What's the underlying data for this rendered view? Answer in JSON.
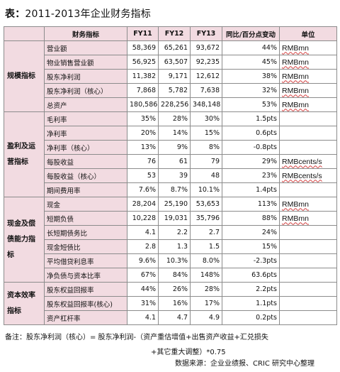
{
  "title": {
    "prefix": "表：",
    "text": "2011-2013年企业财务指标"
  },
  "headers": [
    "",
    "财务指标",
    "FY11",
    "FY12",
    "FY13",
    "同比/百分点变动",
    "单位"
  ],
  "groups": [
    {
      "name": "规模指标",
      "rows": [
        {
          "label": "营业额",
          "fy11": "58,369",
          "fy12": "65,261",
          "fy13": "93,672",
          "chg": "44%",
          "unit": "RMBmn"
        },
        {
          "label": "物业销售营业额",
          "fy11": "56,925",
          "fy12": "63,507",
          "fy13": "92,235",
          "chg": "45%",
          "unit": "RMBmn"
        },
        {
          "label": "股东净利润",
          "fy11": "11,382",
          "fy12": "9,171",
          "fy13": "12,612",
          "chg": "38%",
          "unit": "RMBmn"
        },
        {
          "label": "股东净利润（核心）",
          "fy11": "7,868",
          "fy12": "5,782",
          "fy13": "7,638",
          "chg": "32%",
          "unit": "RMBmn"
        },
        {
          "label": "总资产",
          "fy11": "180,586",
          "fy12": "228,256",
          "fy13": "348,148",
          "chg": "53%",
          "unit": "RMBmn"
        }
      ]
    },
    {
      "name": "盈利及运营指标",
      "rows": [
        {
          "label": "毛利率",
          "fy11": "35%",
          "fy12": "28%",
          "fy13": "30%",
          "chg": "1.5pts",
          "unit": ""
        },
        {
          "label": "净利率",
          "fy11": "20%",
          "fy12": "14%",
          "fy13": "15%",
          "chg": "0.6pts",
          "unit": ""
        },
        {
          "label": "净利率（核心）",
          "fy11": "13%",
          "fy12": "9%",
          "fy13": "8%",
          "chg": "-0.8pts",
          "unit": ""
        },
        {
          "label": "每股收益",
          "fy11": "76",
          "fy12": "61",
          "fy13": "79",
          "chg": "29%",
          "unit": "RMBcents/s"
        },
        {
          "label": "每股收益（核心）",
          "fy11": "53",
          "fy12": "39",
          "fy13": "48",
          "chg": "23%",
          "unit": "RMBcents/s"
        },
        {
          "label": "期间费用率",
          "fy11": "7.6%",
          "fy12": "8.7%",
          "fy13": "10.1%",
          "chg": "1.4pts",
          "unit": ""
        }
      ]
    },
    {
      "name": "现金及偿债能力指标",
      "rows": [
        {
          "label": "现金",
          "fy11": "28,204",
          "fy12": "25,190",
          "fy13": "53,653",
          "chg": "113%",
          "unit": "RMBmn"
        },
        {
          "label": "短期负债",
          "fy11": "10,228",
          "fy12": "19,031",
          "fy13": "35,796",
          "chg": "88%",
          "unit": "RMBmn"
        },
        {
          "label": "长短期债务比",
          "fy11": "4.1",
          "fy12": "2.2",
          "fy13": "2.7",
          "chg": "24%",
          "unit": ""
        },
        {
          "label": "现金短债比",
          "fy11": "2.8",
          "fy12": "1.3",
          "fy13": "1.5",
          "chg": "15%",
          "unit": ""
        },
        {
          "label": "平均借贷利息率",
          "fy11": "9.6%",
          "fy12": "10.3%",
          "fy13": "8.0%",
          "chg": "-2.3pts",
          "unit": ""
        },
        {
          "label": "净负债与资本比率",
          "fy11": "67%",
          "fy12": "84%",
          "fy13": "148%",
          "chg": "63.6pts",
          "unit": ""
        }
      ]
    },
    {
      "name": "资本效率指标",
      "rows": [
        {
          "label": "股东权益回报率",
          "fy11": "44%",
          "fy12": "26%",
          "fy13": "28%",
          "chg": "2.2pts",
          "unit": ""
        },
        {
          "label": "股东权益回报率(核心)",
          "fy11": "31%",
          "fy12": "16%",
          "fy13": "17%",
          "chg": "1.1pts",
          "unit": ""
        },
        {
          "label": "资产杠杆率",
          "fy11": "4.1",
          "fy12": "4.7",
          "fy13": "4.9",
          "chg": "0.2pts",
          "unit": ""
        }
      ]
    }
  ],
  "notes": {
    "line1": "备注：股东净利润（核心）= 股东净利润-（资产重估增值+出售资产收益+汇兑损失",
    "line2": "+其它重大调整）*0.75",
    "source": "数据来源：企业业绩报、CRIC 研究中心整理"
  }
}
